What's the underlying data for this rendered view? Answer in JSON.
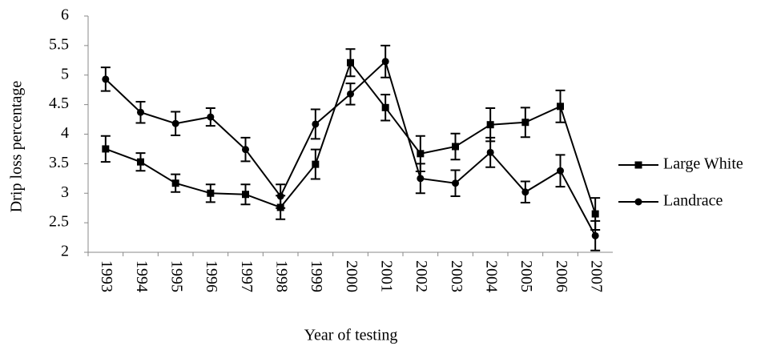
{
  "chart_data": {
    "type": "line",
    "x_label": "Year of testing",
    "y_label": "Drip loss percentage",
    "categories": [
      "1993",
      "1994",
      "1995",
      "1996",
      "1997",
      "1998",
      "1999",
      "2000",
      "2001",
      "2002",
      "2003",
      "2004",
      "2005",
      "2006",
      "2007"
    ],
    "series": [
      {
        "name": "Large White",
        "color": "#000000",
        "marker": "square",
        "values": [
          3.75,
          3.53,
          3.17,
          3.0,
          2.98,
          2.76,
          3.49,
          5.21,
          4.45,
          3.67,
          3.79,
          4.16,
          4.2,
          4.47,
          2.65
        ],
        "errors": [
          0.22,
          0.15,
          0.15,
          0.15,
          0.17,
          0.2,
          0.25,
          0.23,
          0.22,
          0.3,
          0.22,
          0.28,
          0.25,
          0.27,
          0.27
        ]
      },
      {
        "name": "Landrace",
        "color": "#000000",
        "marker": "circle",
        "values": [
          4.93,
          4.37,
          4.18,
          4.29,
          3.74,
          2.95,
          4.17,
          4.68,
          5.23,
          3.25,
          3.17,
          3.69,
          3.02,
          3.38,
          2.28
        ],
        "errors": [
          0.2,
          0.18,
          0.2,
          0.15,
          0.2,
          0.2,
          0.25,
          0.18,
          0.27,
          0.25,
          0.22,
          0.25,
          0.18,
          0.27,
          0.25
        ]
      }
    ],
    "ylim": [
      2,
      6
    ],
    "yticks": [
      2,
      2.5,
      3,
      3.5,
      4,
      4.5,
      5,
      5.5,
      6
    ],
    "grid": false,
    "legend": "right"
  }
}
